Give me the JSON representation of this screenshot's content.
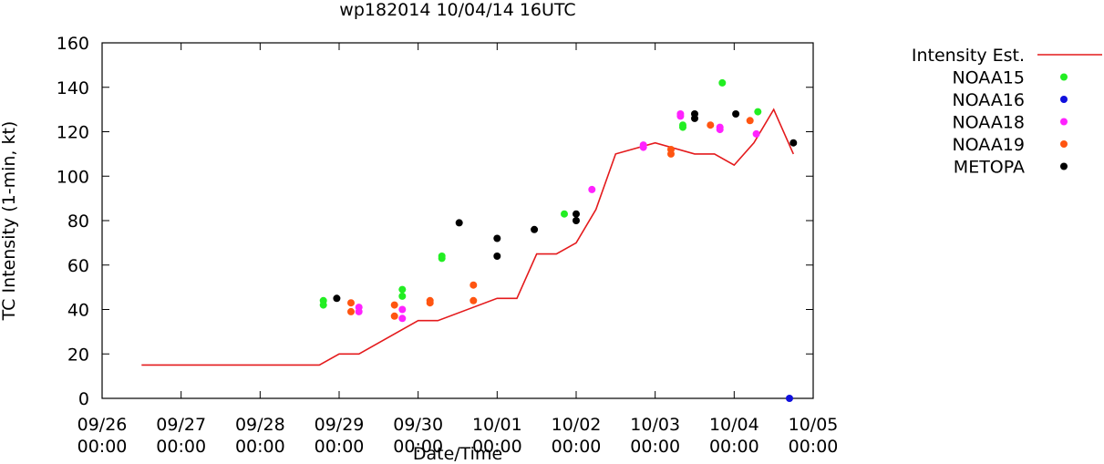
{
  "chart_data": {
    "type": "scatter",
    "title": "wp182014 10/04/14 16UTC",
    "xlabel": "Date/Time",
    "ylabel": "TC Intensity (1-min, kt)",
    "xlim": [
      0,
      9
    ],
    "ylim": [
      0,
      160
    ],
    "y_ticks": [
      0,
      20,
      40,
      60,
      80,
      100,
      120,
      140,
      160
    ],
    "x_ticks": [
      {
        "x": 0,
        "date": "09/26",
        "time": "00:00"
      },
      {
        "x": 1,
        "date": "09/27",
        "time": "00:00"
      },
      {
        "x": 2,
        "date": "09/28",
        "time": "00:00"
      },
      {
        "x": 3,
        "date": "09/29",
        "time": "00:00"
      },
      {
        "x": 4,
        "date": "09/30",
        "time": "00:00"
      },
      {
        "x": 5,
        "date": "10/01",
        "time": "00:00"
      },
      {
        "x": 6,
        "date": "10/02",
        "time": "00:00"
      },
      {
        "x": 7,
        "date": "10/03",
        "time": "00:00"
      },
      {
        "x": 8,
        "date": "10/04",
        "time": "00:00"
      },
      {
        "x": 9,
        "date": "10/05",
        "time": "00:00"
      }
    ],
    "x_units": "days since 09/26 00:00",
    "series": [
      {
        "name": "Intensity Est.",
        "kind": "line",
        "color": "#e41a1c",
        "x": [
          0.5,
          2.75,
          3.0,
          3.25,
          4.0,
          4.25,
          5.0,
          5.25,
          5.5,
          5.75,
          6.0,
          6.25,
          6.5,
          7.0,
          7.5,
          7.75,
          8.0,
          8.25,
          8.5,
          8.75
        ],
        "y": [
          15,
          15,
          20,
          20,
          35,
          35,
          45,
          45,
          65,
          65,
          70,
          85,
          110,
          115,
          110,
          110,
          105,
          115,
          130,
          110
        ]
      },
      {
        "name": "NOAA15",
        "kind": "points",
        "color": "#22ee22",
        "x": [
          2.8,
          2.8,
          3.8,
          3.8,
          4.3,
          4.3,
          5.85,
          7.35,
          7.35,
          7.85,
          8.3
        ],
        "y": [
          44,
          42,
          49,
          46,
          64,
          63,
          83,
          123,
          122,
          142,
          129
        ]
      },
      {
        "name": "NOAA16",
        "kind": "points",
        "color": "#1010dd",
        "x": [
          8.7
        ],
        "y": [
          0
        ]
      },
      {
        "name": "NOAA18",
        "kind": "points",
        "color": "#ff22ff",
        "x": [
          3.25,
          3.25,
          3.8,
          3.8,
          6.2,
          6.85,
          6.85,
          7.32,
          7.32,
          7.82,
          7.82,
          8.28
        ],
        "y": [
          41,
          39,
          40,
          36,
          94,
          114,
          113,
          128,
          127,
          122,
          121,
          119
        ]
      },
      {
        "name": "NOAA19",
        "kind": "points",
        "color": "#ff5511",
        "x": [
          3.15,
          3.15,
          3.7,
          3.7,
          4.15,
          4.15,
          4.7,
          4.7,
          7.2,
          7.2,
          7.7,
          8.2
        ],
        "y": [
          43,
          39,
          42,
          37,
          44,
          43,
          51,
          44,
          112,
          110,
          123,
          125
        ]
      },
      {
        "name": "METOPA",
        "kind": "points",
        "color": "#000000",
        "x": [
          2.97,
          4.52,
          5.0,
          5.0,
          5.47,
          6.0,
          6.0,
          7.5,
          7.5,
          8.02,
          8.75
        ],
        "y": [
          45,
          79,
          72,
          64,
          76,
          83,
          80,
          128,
          126,
          128,
          115
        ]
      }
    ]
  }
}
